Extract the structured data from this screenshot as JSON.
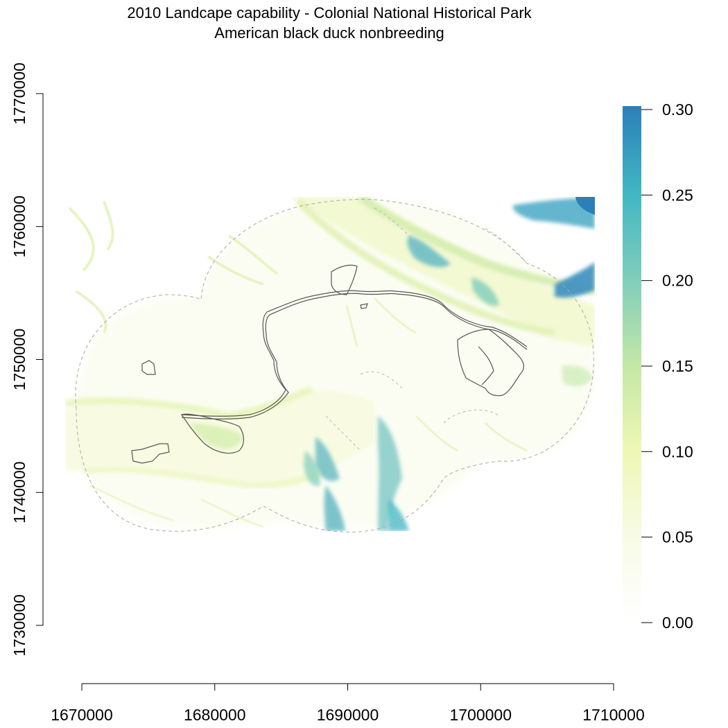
{
  "title": {
    "line1": "2010 Landcape capability - Colonial National Historical Park",
    "line2": "American black duck nonbreeding"
  },
  "chart_data": {
    "type": "heatmap",
    "title": "2010 Landcape capability - Colonial National Historical Park",
    "subtitle": "American black duck nonbreeding",
    "xlim": [
      1670000,
      1710000
    ],
    "ylim": [
      1730000,
      1770000
    ],
    "x_ticks": [
      "1670000",
      "1680000",
      "1690000",
      "1700000",
      "1710000"
    ],
    "y_ticks": [
      "1730000",
      "1740000",
      "1750000",
      "1760000",
      "1770000"
    ],
    "raster_extent": {
      "x": [
        1668800,
        1708800
      ],
      "y": [
        1737200,
        1762300
      ]
    },
    "legend": {
      "placement": "right",
      "range": [
        0,
        0.3
      ],
      "ticks": [
        "0.00",
        "0.05",
        "0.10",
        "0.15",
        "0.20",
        "0.25",
        "0.30"
      ],
      "colors": [
        "#ffffff",
        "#f7fbe6",
        "#eef7b4",
        "#c3e7a6",
        "#7fcdbb",
        "#41b6c4",
        "#2c7fb8"
      ]
    }
  }
}
